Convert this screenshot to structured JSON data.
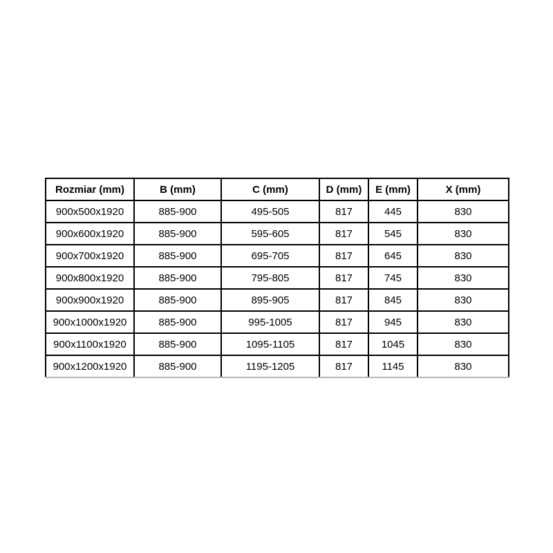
{
  "colors": {
    "background": "#ffffff",
    "grid_border": "#000000",
    "bottom_border": "#b5b5b5",
    "text": "#000000"
  },
  "table": {
    "headers": [
      "Rozmiar (mm)",
      "B (mm)",
      "C (mm)",
      "D (mm)",
      "E (mm)",
      "X (mm)"
    ],
    "rows": [
      [
        "900x500x1920",
        "885-900",
        "495-505",
        "817",
        "445",
        "830"
      ],
      [
        "900x600x1920",
        "885-900",
        "595-605",
        "817",
        "545",
        "830"
      ],
      [
        "900x700x1920",
        "885-900",
        "695-705",
        "817",
        "645",
        "830"
      ],
      [
        "900x800x1920",
        "885-900",
        "795-805",
        "817",
        "745",
        "830"
      ],
      [
        "900x900x1920",
        "885-900",
        "895-905",
        "817",
        "845",
        "830"
      ],
      [
        "900x1000x1920",
        "885-900",
        "995-1005",
        "817",
        "945",
        "830"
      ],
      [
        "900x1100x1920",
        "885-900",
        "1095-1105",
        "817",
        "1045",
        "830"
      ],
      [
        "900x1200x1920",
        "885-900",
        "1195-1205",
        "817",
        "1145",
        "830"
      ]
    ]
  }
}
